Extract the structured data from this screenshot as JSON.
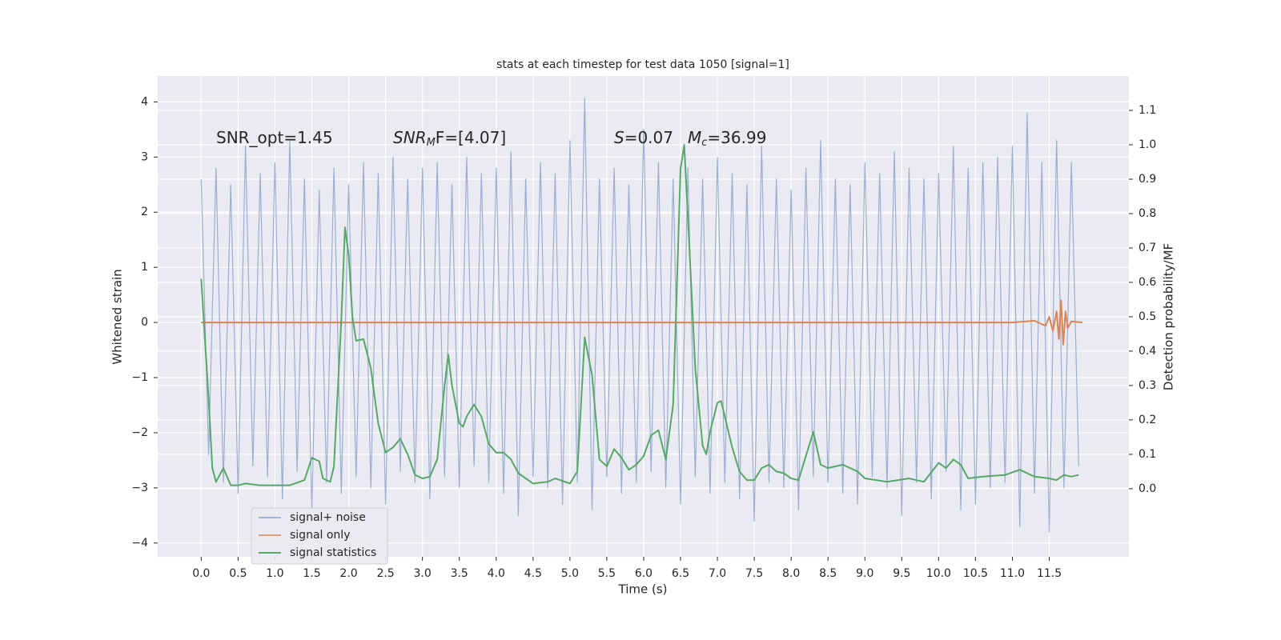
{
  "chart_data": {
    "type": "line",
    "title": "stats at each timestep for test data 1050 [signal=1]",
    "x_label": "Time (s)",
    "y_label": "Whitened strain",
    "y2_label": "Detection probability/MF",
    "annotations": [
      {
        "parts": [
          "SNR_opt=1.45"
        ]
      },
      {
        "parts": [
          "SNR",
          "M",
          "F=[4.07]"
        ]
      },
      {
        "parts": [
          "S",
          "=0.07"
        ]
      },
      {
        "parts": [
          "M",
          "c",
          "=36.99"
        ]
      }
    ],
    "xlim": [
      -0.59,
      12.58
    ],
    "ylim": [
      -4.25,
      4.47
    ],
    "y2lim": [
      -0.198,
      1.2
    ],
    "xticks": [
      {
        "value": 0,
        "label": "0.0"
      },
      0.5,
      {
        "value": 1,
        "label": "1.0"
      },
      1.5,
      {
        "value": 2,
        "label": "2.0"
      },
      2.5,
      {
        "value": 3,
        "label": "3.0"
      },
      3.5,
      {
        "value": 4,
        "label": "4.0"
      },
      4.5,
      {
        "value": 5,
        "label": "5.0"
      },
      5.5,
      {
        "value": 6,
        "label": "6.0"
      },
      6.5,
      {
        "value": 7,
        "label": "7.0"
      },
      7.5,
      {
        "value": 8,
        "label": "8.0"
      },
      8.5,
      {
        "value": 9,
        "label": "9.0"
      },
      9.5,
      {
        "value": 10,
        "label": "10.0"
      },
      10.5,
      {
        "value": 11,
        "label": "11.0"
      },
      11.5
    ],
    "yticks": [
      {
        "value": -4,
        "label": "−4"
      },
      {
        "value": -3,
        "label": "−3"
      },
      {
        "value": -2,
        "label": "−2"
      },
      {
        "value": -1,
        "label": "−1"
      },
      0,
      1,
      2,
      3,
      4
    ],
    "y2ticks": [
      {
        "value": 0,
        "label": "0.0"
      },
      0.1,
      0.2,
      0.3,
      0.4,
      0.5,
      0.6,
      0.7,
      0.8,
      0.9,
      {
        "value": 1,
        "label": "1.0"
      },
      1.1
    ],
    "grid": true,
    "legend": "lower left",
    "series": [
      {
        "name": "signal+ noise",
        "color": "#8ea2cc",
        "x": [
          0,
          0.1,
          0.2,
          0.3,
          0.4,
          0.5,
          0.6,
          0.7,
          0.8,
          0.9,
          1,
          1.1,
          1.2,
          1.3,
          1.4,
          1.5,
          1.6,
          1.7,
          1.8,
          1.9,
          2,
          2.1,
          2.2,
          2.3,
          2.4,
          2.5,
          2.6,
          2.7,
          2.8,
          2.9,
          3,
          3.1,
          3.2,
          3.3,
          3.4,
          3.5,
          3.6,
          3.7,
          3.8,
          3.9,
          4,
          4.1,
          4.2,
          4.3,
          4.4,
          4.5,
          4.6,
          4.7,
          4.8,
          4.9,
          5,
          5.1,
          5.2,
          5.3,
          5.4,
          5.5,
          5.6,
          5.7,
          5.8,
          5.9,
          6,
          6.1,
          6.2,
          6.3,
          6.4,
          6.5,
          6.6,
          6.7,
          6.8,
          6.9,
          7,
          7.1,
          7.2,
          7.3,
          7.4,
          7.5,
          7.6,
          7.7,
          7.8,
          7.9,
          8,
          8.1,
          8.2,
          8.3,
          8.4,
          8.5,
          8.6,
          8.7,
          8.8,
          8.9,
          9,
          9.1,
          9.2,
          9.3,
          9.4,
          9.5,
          9.6,
          9.7,
          9.8,
          9.9,
          10,
          10.1,
          10.2,
          10.3,
          10.4,
          10.5,
          10.6,
          10.7,
          10.8,
          10.9,
          11,
          11.1,
          11.2,
          11.3,
          11.4,
          11.5,
          11.6,
          11.7,
          11.8,
          11.9
        ],
        "values": [
          2.6,
          -2.4,
          2.8,
          -2.9,
          2.5,
          -3.1,
          3.2,
          -2.6,
          2.7,
          -2.8,
          2.9,
          -3.2,
          3.3,
          -2.7,
          2.6,
          -3.4,
          2.4,
          -2.9,
          2.8,
          -3.1,
          2.5,
          -2.8,
          2.9,
          -3.0,
          2.7,
          -3.3,
          3.0,
          -2.7,
          2.6,
          -2.9,
          2.8,
          -3.2,
          2.9,
          -2.8,
          2.5,
          -3.0,
          3.0,
          -2.6,
          2.7,
          -2.9,
          2.8,
          -3.1,
          3.1,
          -3.5,
          2.6,
          -2.8,
          2.9,
          -3.0,
          2.7,
          -3.3,
          3.3,
          -2.9,
          4.07,
          -3.4,
          2.6,
          -2.8,
          2.8,
          -3.1,
          2.5,
          -2.9,
          3.5,
          -2.7,
          2.9,
          -3.0,
          2.6,
          -3.3,
          2.8,
          -2.8,
          2.6,
          -3.1,
          3.0,
          -2.9,
          2.7,
          -3.2,
          2.5,
          -3.6,
          3.2,
          -2.9,
          2.6,
          -3.0,
          2.4,
          -3.4,
          2.8,
          -2.8,
          3.3,
          -2.9,
          2.6,
          -3.1,
          2.5,
          -3.3,
          2.9,
          -2.8,
          2.7,
          -3.0,
          3.1,
          -3.5,
          2.8,
          -2.9,
          2.6,
          -3.2,
          2.7,
          -2.7,
          3.2,
          -3.4,
          2.8,
          -3.3,
          2.9,
          -3.0,
          3.0,
          -2.9,
          3.2,
          -3.7,
          3.8,
          -3.1,
          2.9,
          -3.8,
          3.3,
          -3.0,
          2.9,
          -2.6
        ]
      },
      {
        "name": "signal only",
        "color": "#dd8452",
        "x": [
          0,
          11.0,
          11.3,
          11.45,
          11.5,
          11.55,
          11.6,
          11.63,
          11.66,
          11.69,
          11.72,
          11.75,
          11.8,
          11.95
        ],
        "values": [
          0,
          0,
          0.03,
          -0.06,
          0.1,
          -0.15,
          0.2,
          -0.3,
          0.4,
          -0.4,
          0.2,
          -0.1,
          0.02,
          0
        ]
      },
      {
        "name": "signal statistics",
        "color": "#55a868",
        "axis": "y2",
        "x": [
          0,
          0.1,
          0.15,
          0.2,
          0.3,
          0.4,
          0.5,
          0.6,
          0.8,
          1.0,
          1.2,
          1.4,
          1.5,
          1.6,
          1.65,
          1.75,
          1.8,
          1.9,
          1.95,
          2.0,
          2.05,
          2.1,
          2.2,
          2.3,
          2.4,
          2.5,
          2.6,
          2.7,
          2.8,
          2.9,
          3.0,
          3.1,
          3.2,
          3.3,
          3.35,
          3.4,
          3.5,
          3.55,
          3.6,
          3.7,
          3.8,
          3.9,
          4.0,
          4.1,
          4.2,
          4.3,
          4.5,
          4.7,
          4.8,
          5.0,
          5.1,
          5.2,
          5.3,
          5.4,
          5.5,
          5.6,
          5.7,
          5.8,
          5.9,
          6.0,
          6.1,
          6.2,
          6.3,
          6.4,
          6.5,
          6.55,
          6.6,
          6.7,
          6.8,
          6.85,
          6.9,
          7.0,
          7.05,
          7.2,
          7.3,
          7.4,
          7.5,
          7.6,
          7.7,
          7.8,
          7.9,
          8.0,
          8.1,
          8.2,
          8.3,
          8.4,
          8.5,
          8.7,
          8.9,
          9.0,
          9.3,
          9.6,
          9.8,
          10.0,
          10.1,
          10.2,
          10.3,
          10.4,
          10.6,
          10.9,
          11.1,
          11.3,
          11.5,
          11.6,
          11.7,
          11.8,
          11.9
        ],
        "values": [
          0.61,
          0.26,
          0.06,
          0.02,
          0.06,
          0.01,
          0.01,
          0.015,
          0.01,
          0.01,
          0.01,
          0.025,
          0.09,
          0.08,
          0.03,
          0.02,
          0.065,
          0.49,
          0.76,
          0.68,
          0.5,
          0.43,
          0.435,
          0.35,
          0.19,
          0.105,
          0.12,
          0.145,
          0.1,
          0.04,
          0.03,
          0.035,
          0.085,
          0.3,
          0.39,
          0.3,
          0.19,
          0.18,
          0.21,
          0.245,
          0.21,
          0.13,
          0.105,
          0.105,
          0.085,
          0.045,
          0.015,
          0.02,
          0.03,
          0.015,
          0.05,
          0.44,
          0.33,
          0.085,
          0.065,
          0.115,
          0.09,
          0.055,
          0.07,
          0.095,
          0.155,
          0.17,
          0.085,
          0.245,
          0.93,
          1.0,
          0.79,
          0.35,
          0.125,
          0.1,
          0.165,
          0.25,
          0.255,
          0.12,
          0.05,
          0.025,
          0.025,
          0.06,
          0.07,
          0.05,
          0.045,
          0.03,
          0.025,
          0.095,
          0.165,
          0.07,
          0.06,
          0.07,
          0.05,
          0.03,
          0.02,
          0.03,
          0.02,
          0.075,
          0.06,
          0.085,
          0.07,
          0.03,
          0.035,
          0.04,
          0.055,
          0.035,
          0.03,
          0.025,
          0.04,
          0.035,
          0.04
        ]
      }
    ]
  }
}
